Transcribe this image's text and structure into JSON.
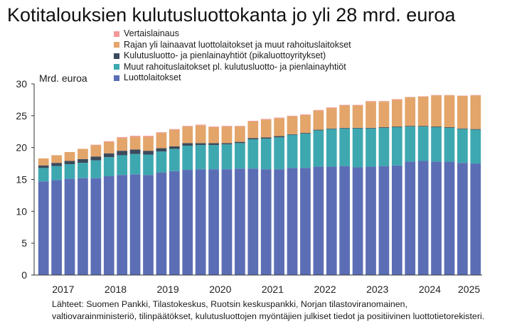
{
  "chart_data": {
    "type": "bar",
    "stacked": true,
    "title": "Kotitalouksien kulutusluottokanta jo yli 28 mrd. euroa",
    "ylabel": "Mrd. euroa",
    "ylim": [
      0,
      30
    ],
    "yticks": [
      0,
      5,
      10,
      15,
      20,
      25,
      30
    ],
    "grid": false,
    "legend_position": "top",
    "x_year_labels": [
      "2017",
      "2018",
      "2019",
      "2020",
      "2021",
      "2022",
      "2023",
      "2024",
      "2025"
    ],
    "categories": [
      "2017-Q1",
      "2017-Q2",
      "2017-Q3",
      "2017-Q4",
      "2018-Q1",
      "2018-Q2",
      "2018-Q3",
      "2018-Q4",
      "2019-Q1",
      "2019-Q2",
      "2019-Q3",
      "2019-Q4",
      "2020-Q1",
      "2020-Q2",
      "2020-Q3",
      "2020-Q4",
      "2021-Q1",
      "2021-Q2",
      "2021-Q3",
      "2021-Q4",
      "2022-Q1",
      "2022-Q2",
      "2022-Q3",
      "2022-Q4",
      "2023-Q1",
      "2023-Q2",
      "2023-Q3",
      "2023-Q4",
      "2024-Q1",
      "2024-Q2",
      "2024-Q3",
      "2024-Q4",
      "2025-Q1",
      "2025-Q2"
    ],
    "series": [
      {
        "name": "Luottolaitokset",
        "color": "#5b6eb5",
        "values": [
          14.7,
          14.9,
          15.1,
          15.2,
          15.2,
          15.5,
          15.7,
          15.8,
          15.7,
          16.1,
          16.3,
          16.5,
          16.6,
          16.6,
          16.6,
          16.7,
          16.7,
          16.6,
          16.6,
          16.8,
          16.8,
          17.0,
          17.0,
          17.1,
          16.9,
          17.0,
          17.1,
          17.2,
          17.8,
          17.9,
          17.8,
          17.8,
          17.6,
          17.5
        ]
      },
      {
        "name": "Muut rahoituslaitokset pl. kulutusluotto- ja pienlainayhtiöt",
        "color": "#3ea8b0",
        "values": [
          2.1,
          2.2,
          2.3,
          2.4,
          2.8,
          3.0,
          3.1,
          3.2,
          3.2,
          3.3,
          3.5,
          3.8,
          3.8,
          3.8,
          3.9,
          4.0,
          4.6,
          4.8,
          5.0,
          5.2,
          5.4,
          5.7,
          5.9,
          5.9,
          6.1,
          6.0,
          6.0,
          6.0,
          5.5,
          5.4,
          5.4,
          5.3,
          5.3,
          5.3
        ]
      },
      {
        "name": "Kulutusluotto- ja pienlainayhtiöt (pikaluottoyritykset)",
        "color": "#3c4a5c",
        "values": [
          0.4,
          0.5,
          0.5,
          0.6,
          0.6,
          0.6,
          0.7,
          0.7,
          0.6,
          0.5,
          0.4,
          0.4,
          0.3,
          0.3,
          0.2,
          0.2,
          0.2,
          0.2,
          0.2,
          0.1,
          0.1,
          0.1,
          0.1,
          0.1,
          0.1,
          0.1,
          0.1,
          0.1,
          0.1,
          0.1,
          0.1,
          0.1,
          0.1,
          0.1
        ]
      },
      {
        "name": "Rajan yli lainaavat luottolaitokset ja muut rahoituslaitokset",
        "color": "#e3a56a",
        "values": [
          1.1,
          1.2,
          1.4,
          1.6,
          1.8,
          1.8,
          2.0,
          2.0,
          2.2,
          2.4,
          2.6,
          2.6,
          2.8,
          2.5,
          2.6,
          2.4,
          2.6,
          2.8,
          2.8,
          2.8,
          2.8,
          3.0,
          3.2,
          3.5,
          3.5,
          4.1,
          4.0,
          4.2,
          4.5,
          4.6,
          4.9,
          5.0,
          5.1,
          5.3
        ]
      },
      {
        "name": "Vertaislainaus",
        "color": "#f29a9a",
        "values": [
          0.0,
          0.0,
          0.0,
          0.0,
          0.05,
          0.1,
          0.15,
          0.15,
          0.15,
          0.1,
          0.1,
          0.1,
          0.1,
          0.1,
          0.1,
          0.1,
          0.1,
          0.1,
          0.1,
          0.1,
          0.1,
          0.1,
          0.1,
          0.1,
          0.1,
          0.1,
          0.1,
          0.1,
          0.05,
          0.05,
          0.05,
          0.05,
          0.05,
          0.05
        ]
      }
    ],
    "legend_order": [
      "Vertaislainaus",
      "Rajan yli lainaavat luottolaitokset ja muut rahoituslaitokset",
      "Kulutusluotto- ja pienlainayhtiöt (pikaluottoyritykset)",
      "Muut rahoituslaitokset pl. kulutusluotto- ja pienlainayhtiöt",
      "Luottolaitokset"
    ]
  },
  "source": {
    "line1": "Lähteet: Suomen Pankki, Tilastokeskus, Ruotsin keskuspankki, Norjan tilastoviranomainen,",
    "line2": "valtiovarainministeriö, tilinpäätökset, kulutusluottojen myöntäjien julkiset tiedot ja positiivinen luottotietorekisteri."
  }
}
